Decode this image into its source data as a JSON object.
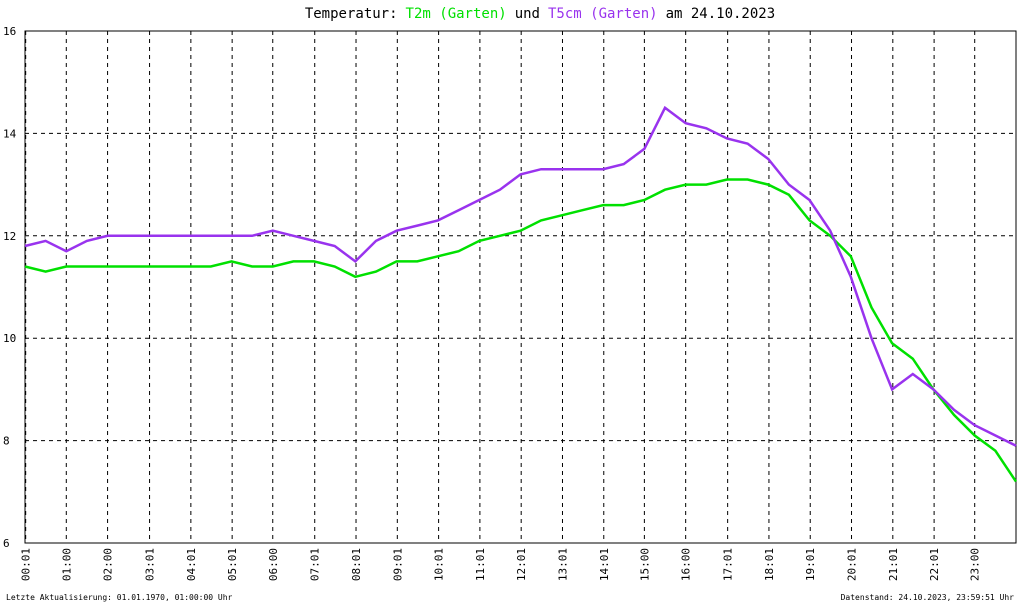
{
  "chart_data": {
    "type": "line",
    "title": [
      "Temperatur:",
      "und",
      "am 24.10.2023"
    ],
    "x": [
      0,
      30,
      60,
      90,
      120,
      150,
      180,
      210,
      240,
      270,
      300,
      330,
      360,
      390,
      420,
      450,
      480,
      510,
      540,
      570,
      600,
      630,
      660,
      690,
      720,
      750,
      780,
      810,
      840,
      870,
      900,
      930,
      960,
      990,
      1020,
      1050,
      1080,
      1110,
      1140,
      1170,
      1200,
      1230,
      1260,
      1290,
      1320,
      1350,
      1380,
      1410,
      1440
    ],
    "series": [
      {
        "name": "T2m (Garten)",
        "color": "#00e000",
        "values": [
          11.4,
          11.3,
          11.4,
          11.4,
          11.4,
          11.4,
          11.4,
          11.4,
          11.4,
          11.4,
          11.5,
          11.4,
          11.4,
          11.5,
          11.5,
          11.4,
          11.2,
          11.3,
          11.5,
          11.5,
          11.6,
          11.7,
          11.9,
          12.0,
          12.1,
          12.3,
          12.4,
          12.5,
          12.6,
          12.6,
          12.7,
          12.9,
          13.0,
          13.0,
          13.1,
          13.1,
          13.0,
          12.8,
          12.3,
          12.0,
          11.6,
          10.6,
          9.9,
          9.6,
          9.0,
          8.5,
          8.1,
          7.8,
          7.2
        ]
      },
      {
        "name": "T5cm (Garten)",
        "color": "#9933ee",
        "values": [
          11.8,
          11.9,
          11.7,
          11.9,
          12.0,
          12.0,
          12.0,
          12.0,
          12.0,
          12.0,
          12.0,
          12.0,
          12.1,
          12.0,
          11.9,
          11.8,
          11.5,
          11.9,
          12.1,
          12.2,
          12.3,
          12.5,
          12.7,
          12.9,
          13.2,
          13.3,
          13.3,
          13.3,
          13.3,
          13.4,
          13.7,
          14.5,
          14.2,
          14.1,
          13.9,
          13.8,
          13.5,
          13.0,
          12.7,
          12.1,
          11.2,
          10.0,
          9.0,
          9.3,
          9.0,
          8.6,
          8.3,
          8.1,
          7.9
        ]
      }
    ],
    "xlim": [
      0,
      1440
    ],
    "xticks": [
      {
        "value": 1,
        "label": "00:01"
      },
      {
        "value": 60,
        "label": "01:00"
      },
      {
        "value": 120,
        "label": "02:00"
      },
      {
        "value": 181,
        "label": "03:01"
      },
      {
        "value": 241,
        "label": "04:01"
      },
      {
        "value": 301,
        "label": "05:01"
      },
      {
        "value": 360,
        "label": "06:00"
      },
      {
        "value": 421,
        "label": "07:01"
      },
      {
        "value": 481,
        "label": "08:01"
      },
      {
        "value": 541,
        "label": "09:01"
      },
      {
        "value": 601,
        "label": "10:01"
      },
      {
        "value": 661,
        "label": "11:01"
      },
      {
        "value": 721,
        "label": "12:01"
      },
      {
        "value": 781,
        "label": "13:01"
      },
      {
        "value": 841,
        "label": "14:01"
      },
      {
        "value": 900,
        "label": "15:00"
      },
      {
        "value": 960,
        "label": "16:00"
      },
      {
        "value": 1021,
        "label": "17:01"
      },
      {
        "value": 1081,
        "label": "18:01"
      },
      {
        "value": 1141,
        "label": "19:01"
      },
      {
        "value": 1201,
        "label": "20:01"
      },
      {
        "value": 1261,
        "label": "21:01"
      },
      {
        "value": 1321,
        "label": "22:01"
      },
      {
        "value": 1380,
        "label": "23:00"
      }
    ],
    "ylim": [
      6,
      16
    ],
    "yticks": [
      6,
      8,
      10,
      12,
      14,
      16
    ],
    "grid": true,
    "footer_left": "Letzte Aktualisierung: 01.01.1970, 01:00:00 Uhr",
    "footer_right": "Datenstand: 24.10.2023, 23:59:51 Uhr"
  }
}
